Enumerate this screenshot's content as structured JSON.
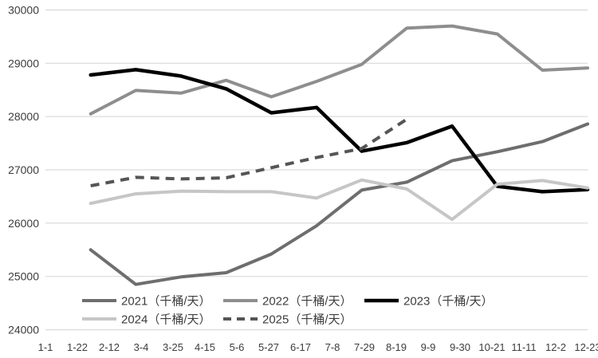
{
  "chart_data": {
    "type": "line",
    "title": "",
    "unit_label": "千桶/天",
    "grid": "horizontal",
    "legend_position": "bottom-inside",
    "y_axis": {
      "min": 24000,
      "max": 30000,
      "step": 1000,
      "tick_labels": [
        "24000",
        "25000",
        "26000",
        "27000",
        "28000",
        "29000",
        "30000"
      ]
    },
    "x_tick_labels": [
      "1-1",
      "1-22",
      "2-12",
      "3-4",
      "3-25",
      "4-15",
      "5-6",
      "5-27",
      "6-17",
      "7-8",
      "7-29",
      "8-19",
      "9-9",
      "9-30",
      "10-21",
      "11-11",
      "12-2",
      "12-23"
    ],
    "points_per_year": 12,
    "series": [
      {
        "name": "2021",
        "label": "2021（千桶/天）",
        "color": "#6e6e6e",
        "style": "solid",
        "width": 4,
        "values": [
          25500,
          24850,
          24990,
          25070,
          25420,
          25950,
          26620,
          26770,
          27170,
          27340,
          27530,
          27860
        ]
      },
      {
        "name": "2022",
        "label": "2022（千桶/天）",
        "color": "#8e8e8e",
        "style": "solid",
        "width": 4,
        "values": [
          28050,
          28490,
          28440,
          28680,
          28370,
          28660,
          28980,
          29660,
          29700,
          29550,
          28870,
          28910
        ]
      },
      {
        "name": "2023",
        "label": "2023（千桶/天）",
        "color": "#000000",
        "style": "solid",
        "width": 4.5,
        "values": [
          28780,
          28880,
          28760,
          28520,
          28070,
          28170,
          27350,
          27510,
          27820,
          26690,
          26590,
          26630
        ]
      },
      {
        "name": "2024",
        "label": "2024（千桶/天）",
        "color": "#c6c6c6",
        "style": "solid",
        "width": 4,
        "values": [
          26370,
          26550,
          26600,
          26590,
          26590,
          26470,
          26810,
          26640,
          26070,
          26730,
          26800,
          26660
        ]
      },
      {
        "name": "2025",
        "label": "2025（千桶/天）",
        "color": "#555555",
        "style": "dashed",
        "width": 4,
        "values": [
          26700,
          26860,
          26830,
          26850,
          27040,
          27230,
          27400,
          27950
        ]
      }
    ],
    "colors": {
      "gridline": "#d9d9d9",
      "axis_text": "#3d3d3d",
      "background": "#ffffff"
    }
  }
}
